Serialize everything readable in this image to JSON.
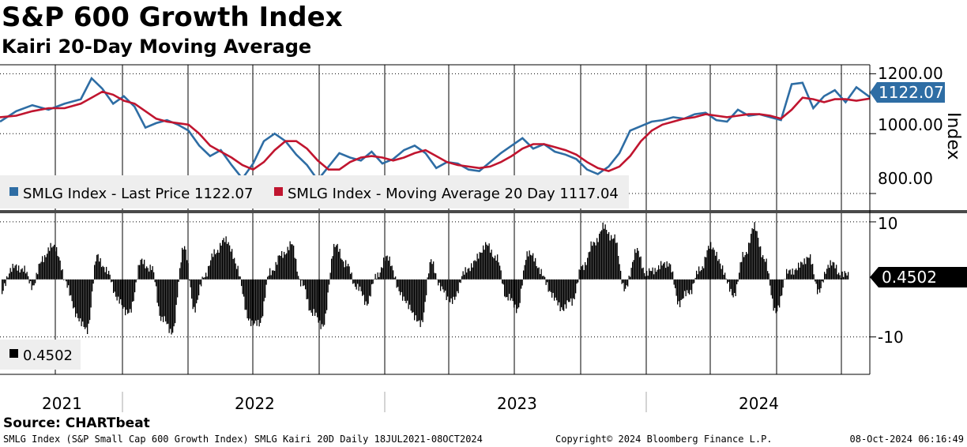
{
  "header": {
    "title": "S&P 600 Growth Index",
    "subtitle": "Kairi 20-Day Moving Average"
  },
  "footer": {
    "source": "Source: CHARTbeat",
    "description": "SMLG Index (S&P Small Cap 600 Growth Index) SMLG Kairi 20D  Daily 18JUL2021-08OCT2024",
    "copyright": "Copyright© 2024 Bloomberg Finance L.P.",
    "timestamp": "08-Oct-2024 06:16:49"
  },
  "colors": {
    "price": "#2e6da4",
    "ma": "#c0152f",
    "histogram": "#000000",
    "grid": "#000000",
    "legend_bg": "#eeeeee",
    "badge_price_bg": "#2e6da4",
    "badge_kairi_bg": "#000000",
    "badge_text": "#ffffff"
  },
  "chart_data": [
    {
      "type": "line",
      "title": "S&P 600 Growth Index",
      "ylabel": "Index",
      "ylim": [
        750,
        1230
      ],
      "yticks": [
        1200.0,
        1000.0,
        800.0
      ],
      "ytick_labels": [
        "1200.00",
        "1000.00",
        "800.00"
      ],
      "x_start": 2021.54,
      "x_end": 2024.77,
      "last_badge": "1122.07",
      "legend": [
        {
          "name": "SMLG Index - Last Price 1122.07",
          "color": "#2e6da4"
        },
        {
          "name": "SMLG Index - Moving Average 20 Day 1117.04",
          "color": "#c0152f"
        }
      ],
      "series": [
        {
          "name": "SMLG Index - Last Price",
          "color": "#2e6da4",
          "x": [
            2021.54,
            2021.6,
            2021.66,
            2021.72,
            2021.78,
            2021.84,
            2021.88,
            2021.92,
            2021.96,
            2022.0,
            2022.04,
            2022.08,
            2022.12,
            2022.16,
            2022.2,
            2022.24,
            2022.28,
            2022.32,
            2022.36,
            2022.4,
            2022.44,
            2022.48,
            2022.52,
            2022.56,
            2022.6,
            2022.64,
            2022.68,
            2022.72,
            2022.76,
            2022.8,
            2022.84,
            2022.88,
            2022.92,
            2022.96,
            2023.0,
            2023.04,
            2023.08,
            2023.12,
            2023.16,
            2023.2,
            2023.24,
            2023.28,
            2023.32,
            2023.36,
            2023.4,
            2023.44,
            2023.48,
            2023.52,
            2023.56,
            2023.6,
            2023.64,
            2023.68,
            2023.72,
            2023.76,
            2023.8,
            2023.84,
            2023.88,
            2023.92,
            2023.96,
            2024.0,
            2024.04,
            2024.08,
            2024.12,
            2024.16,
            2024.2,
            2024.24,
            2024.28,
            2024.32,
            2024.36,
            2024.4,
            2024.44,
            2024.48,
            2024.52,
            2024.56,
            2024.6,
            2024.64,
            2024.68,
            2024.72,
            2024.77
          ],
          "values": [
            1040,
            1075,
            1095,
            1080,
            1100,
            1115,
            1185,
            1150,
            1100,
            1125,
            1090,
            1020,
            1035,
            1045,
            1030,
            1010,
            960,
            925,
            945,
            895,
            850,
            900,
            975,
            1000,
            975,
            930,
            895,
            845,
            890,
            935,
            920,
            910,
            940,
            900,
            915,
            945,
            960,
            935,
            885,
            905,
            900,
            880,
            875,
            905,
            935,
            960,
            985,
            950,
            965,
            940,
            930,
            915,
            880,
            865,
            890,
            935,
            1010,
            1025,
            1040,
            1045,
            1055,
            1050,
            1065,
            1070,
            1045,
            1040,
            1080,
            1060,
            1065,
            1055,
            1045,
            1165,
            1170,
            1085,
            1125,
            1145,
            1105,
            1155,
            1122.07
          ]
        },
        {
          "name": "SMLG Index - Moving Average 20 Day",
          "color": "#c0152f",
          "x": [
            2021.54,
            2021.6,
            2021.66,
            2021.72,
            2021.78,
            2021.84,
            2021.88,
            2021.92,
            2021.96,
            2022.0,
            2022.04,
            2022.08,
            2022.12,
            2022.16,
            2022.2,
            2022.24,
            2022.28,
            2022.32,
            2022.36,
            2022.4,
            2022.44,
            2022.48,
            2022.52,
            2022.56,
            2022.6,
            2022.64,
            2022.68,
            2022.72,
            2022.76,
            2022.8,
            2022.84,
            2022.88,
            2022.92,
            2022.96,
            2023.0,
            2023.04,
            2023.08,
            2023.12,
            2023.16,
            2023.2,
            2023.24,
            2023.28,
            2023.32,
            2023.36,
            2023.4,
            2023.44,
            2023.48,
            2023.52,
            2023.56,
            2023.6,
            2023.64,
            2023.68,
            2023.72,
            2023.76,
            2023.8,
            2023.84,
            2023.88,
            2023.92,
            2023.96,
            2024.0,
            2024.04,
            2024.08,
            2024.12,
            2024.16,
            2024.2,
            2024.24,
            2024.28,
            2024.32,
            2024.36,
            2024.4,
            2024.44,
            2024.48,
            2024.52,
            2024.56,
            2024.6,
            2024.64,
            2024.68,
            2024.72,
            2024.77
          ],
          "values": [
            1055,
            1060,
            1075,
            1085,
            1085,
            1100,
            1120,
            1140,
            1130,
            1110,
            1100,
            1075,
            1050,
            1040,
            1035,
            1030,
            1000,
            960,
            940,
            920,
            895,
            880,
            905,
            945,
            975,
            975,
            950,
            910,
            880,
            880,
            905,
            920,
            925,
            920,
            910,
            920,
            935,
            945,
            925,
            905,
            895,
            890,
            885,
            890,
            905,
            925,
            950,
            965,
            965,
            955,
            945,
            930,
            905,
            885,
            875,
            890,
            925,
            975,
            1010,
            1030,
            1040,
            1050,
            1055,
            1065,
            1060,
            1055,
            1060,
            1065,
            1065,
            1060,
            1050,
            1080,
            1120,
            1115,
            1105,
            1115,
            1115,
            1110,
            1117.04
          ]
        }
      ]
    },
    {
      "type": "bar",
      "title": "SMLG Kairi 20D",
      "ylim": [
        -16.5,
        11.5
      ],
      "yticks": [
        10,
        -10
      ],
      "ytick_labels": [
        "10",
        "-10"
      ],
      "x_start": 2021.54,
      "x_end": 2024.77,
      "last_badge": "0.4502",
      "legend": [
        {
          "name": "0.4502",
          "color": "#000000"
        }
      ],
      "anchors_x": [
        2021.54,
        2021.58,
        2021.62,
        2021.66,
        2021.7,
        2021.74,
        2021.78,
        2021.82,
        2021.86,
        2021.9,
        2021.94,
        2021.98,
        2022.02,
        2022.06,
        2022.1,
        2022.14,
        2022.18,
        2022.22,
        2022.26,
        2022.3,
        2022.34,
        2022.38,
        2022.42,
        2022.46,
        2022.5,
        2022.54,
        2022.58,
        2022.62,
        2022.66,
        2022.7,
        2022.74,
        2022.78,
        2022.82,
        2022.86,
        2022.9,
        2022.94,
        2022.98,
        2023.02,
        2023.06,
        2023.1,
        2023.14,
        2023.18,
        2023.22,
        2023.26,
        2023.3,
        2023.34,
        2023.38,
        2023.42,
        2023.46,
        2023.5,
        2023.54,
        2023.58,
        2023.62,
        2023.66,
        2023.7,
        2023.74,
        2023.78,
        2023.82,
        2023.86,
        2023.9,
        2023.94,
        2023.98,
        2024.02,
        2024.06,
        2024.1,
        2024.14,
        2024.18,
        2024.22,
        2024.26,
        2024.3,
        2024.34,
        2024.38,
        2024.42,
        2024.46,
        2024.5,
        2024.54,
        2024.58,
        2024.62,
        2024.66,
        2024.7,
        2024.74,
        2024.77
      ],
      "anchors_v": [
        -3,
        2,
        2,
        -1,
        4,
        6,
        0,
        -6,
        -9,
        4,
        1,
        -4,
        -6,
        3,
        2,
        -7,
        -9,
        6,
        -5,
        1,
        5,
        7,
        2,
        -7,
        -8,
        1,
        4,
        6,
        -1,
        -6,
        -8,
        6,
        3,
        -1,
        -4,
        1,
        4,
        -2,
        -5,
        -8,
        3,
        -2,
        -4,
        1,
        3,
        6,
        4,
        -3,
        -5,
        5,
        2,
        -2,
        -5,
        -4,
        2,
        6,
        9,
        7,
        -2,
        5,
        1,
        2,
        3,
        -4,
        -2,
        2,
        6,
        2,
        -3,
        4,
        9,
        3,
        -6,
        1,
        2,
        4,
        -2,
        3,
        1,
        0.45,
        0.45,
        0.4502
      ]
    }
  ],
  "axes": {
    "upper_axis_label": "Index",
    "years": [
      "2021",
      "2022",
      "2023",
      "2024"
    ]
  }
}
